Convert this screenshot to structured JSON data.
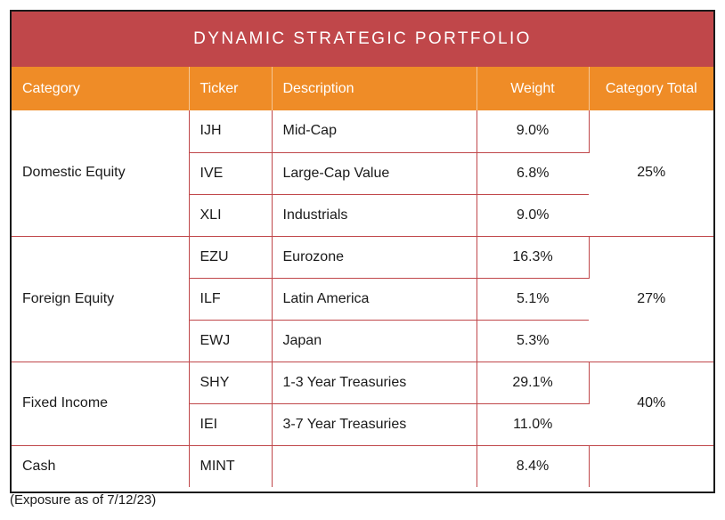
{
  "title": "DYNAMIC STRATEGIC PORTFOLIO",
  "headers": {
    "category": "Category",
    "ticker": "Ticker",
    "description": "Description",
    "weight": "Weight",
    "category_total": "Category Total"
  },
  "groups": [
    {
      "category": "Domestic Equity",
      "total": "25%",
      "rows": [
        {
          "ticker": "IJH",
          "description": "Mid-Cap",
          "weight": "9.0%"
        },
        {
          "ticker": "IVE",
          "description": "Large-Cap Value",
          "weight": "6.8%"
        },
        {
          "ticker": "XLI",
          "description": "Industrials",
          "weight": "9.0%"
        }
      ]
    },
    {
      "category": "Foreign Equity",
      "total": "27%",
      "rows": [
        {
          "ticker": "EZU",
          "description": "Eurozone",
          "weight": "16.3%"
        },
        {
          "ticker": "ILF",
          "description": "Latin America",
          "weight": "5.1%"
        },
        {
          "ticker": "EWJ",
          "description": "Japan",
          "weight": "5.3%"
        }
      ]
    },
    {
      "category": "Fixed Income",
      "total": "40%",
      "rows": [
        {
          "ticker": "SHY",
          "description": "1-3 Year Treasuries",
          "weight": "29.1%"
        },
        {
          "ticker": "IEI",
          "description": "3-7 Year Treasuries",
          "weight": "11.0%"
        }
      ]
    },
    {
      "category": "Cash",
      "total": "",
      "rows": [
        {
          "ticker": "MINT",
          "description": "",
          "weight": "8.4%"
        }
      ]
    }
  ],
  "footnote": "(Exposure as of 7/12/23)",
  "colors": {
    "title_bg": "#c0474a",
    "header_bg": "#ef8c27",
    "grid_line": "#c0474a"
  }
}
